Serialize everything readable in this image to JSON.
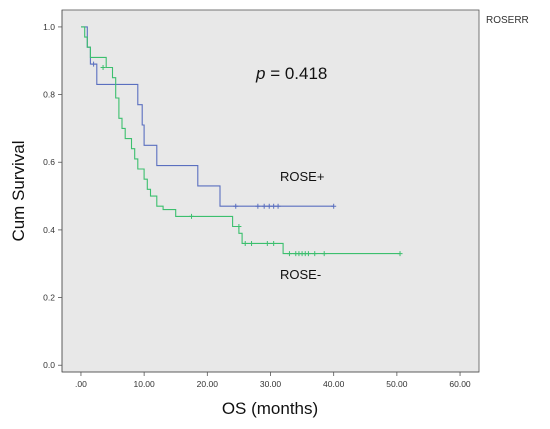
{
  "chart_data": {
    "type": "line",
    "title": "",
    "xlabel": "OS (months)",
    "ylabel": "Cum Survival",
    "xlim": [
      -3,
      63
    ],
    "ylim": [
      -0.02,
      1.05
    ],
    "x_ticks": [
      0,
      10,
      20,
      30,
      40,
      50,
      60
    ],
    "x_tick_labels": [
      ".00",
      "10.00",
      "20.00",
      "30.00",
      "40.00",
      "50.00",
      "60.00"
    ],
    "y_ticks": [
      0,
      0.2,
      0.4,
      0.6,
      0.8,
      1.0
    ],
    "y_tick_labels": [
      "0.0",
      "0.2",
      "0.4",
      "0.6",
      "0.8",
      "1.0"
    ],
    "grid": false,
    "legend": {
      "title": "ROSERR",
      "placement": "top-right"
    },
    "annotation": {
      "prefix": "p",
      "text": " = 0.418"
    },
    "series": [
      {
        "name": "ROSE+",
        "color": "#5a6fbf",
        "step_points": [
          [
            0,
            1.0
          ],
          [
            1,
            1.0
          ],
          [
            1,
            0.94
          ],
          [
            1.5,
            0.94
          ],
          [
            1.5,
            0.89
          ],
          [
            2.5,
            0.89
          ],
          [
            2.5,
            0.83
          ],
          [
            9,
            0.83
          ],
          [
            9,
            0.77
          ],
          [
            9.7,
            0.77
          ],
          [
            9.7,
            0.71
          ],
          [
            10,
            0.71
          ],
          [
            10,
            0.65
          ],
          [
            12,
            0.65
          ],
          [
            12,
            0.59
          ],
          [
            18.5,
            0.59
          ],
          [
            18.5,
            0.53
          ],
          [
            22,
            0.53
          ],
          [
            22,
            0.47
          ],
          [
            40,
            0.47
          ]
        ],
        "censored": [
          [
            2,
            0.89
          ],
          [
            24.5,
            0.47
          ],
          [
            28,
            0.47
          ],
          [
            29,
            0.47
          ],
          [
            29.8,
            0.47
          ],
          [
            30.5,
            0.47
          ],
          [
            31.2,
            0.47
          ],
          [
            40,
            0.47
          ]
        ]
      },
      {
        "name": "ROSE-",
        "color": "#3cbf6e",
        "step_points": [
          [
            0,
            1.0
          ],
          [
            0.6,
            1.0
          ],
          [
            0.6,
            0.97
          ],
          [
            1,
            0.97
          ],
          [
            1,
            0.94
          ],
          [
            1.5,
            0.94
          ],
          [
            1.5,
            0.91
          ],
          [
            4,
            0.91
          ],
          [
            4,
            0.88
          ],
          [
            5,
            0.88
          ],
          [
            5,
            0.85
          ],
          [
            5.5,
            0.85
          ],
          [
            5.5,
            0.79
          ],
          [
            6,
            0.79
          ],
          [
            6,
            0.73
          ],
          [
            6.5,
            0.73
          ],
          [
            6.5,
            0.7
          ],
          [
            7,
            0.7
          ],
          [
            7,
            0.67
          ],
          [
            8,
            0.67
          ],
          [
            8,
            0.64
          ],
          [
            8.5,
            0.64
          ],
          [
            8.5,
            0.61
          ],
          [
            9,
            0.61
          ],
          [
            9,
            0.58
          ],
          [
            10,
            0.58
          ],
          [
            10,
            0.55
          ],
          [
            10.5,
            0.55
          ],
          [
            10.5,
            0.52
          ],
          [
            11,
            0.52
          ],
          [
            11,
            0.5
          ],
          [
            12,
            0.5
          ],
          [
            12,
            0.47
          ],
          [
            13,
            0.47
          ],
          [
            13,
            0.46
          ],
          [
            15,
            0.46
          ],
          [
            15,
            0.44
          ],
          [
            24,
            0.44
          ],
          [
            24,
            0.41
          ],
          [
            25,
            0.41
          ],
          [
            25,
            0.39
          ],
          [
            25.5,
            0.39
          ],
          [
            25.5,
            0.36
          ],
          [
            32,
            0.36
          ],
          [
            32,
            0.33
          ],
          [
            50.5,
            0.33
          ]
        ],
        "censored": [
          [
            3.5,
            0.88
          ],
          [
            17.5,
            0.44
          ],
          [
            25,
            0.41
          ],
          [
            26,
            0.36
          ],
          [
            27,
            0.36
          ],
          [
            29.5,
            0.36
          ],
          [
            30.5,
            0.36
          ],
          [
            33,
            0.33
          ],
          [
            34,
            0.33
          ],
          [
            34.5,
            0.33
          ],
          [
            35,
            0.33
          ],
          [
            35.5,
            0.33
          ],
          [
            36,
            0.33
          ],
          [
            37,
            0.33
          ],
          [
            38.5,
            0.33
          ],
          [
            50.5,
            0.33
          ]
        ]
      }
    ],
    "series_labels": [
      {
        "text": "ROSE+",
        "x": 31.5,
        "y": 0.545
      },
      {
        "text": "ROSE-",
        "x": 31.5,
        "y": 0.255
      }
    ]
  }
}
